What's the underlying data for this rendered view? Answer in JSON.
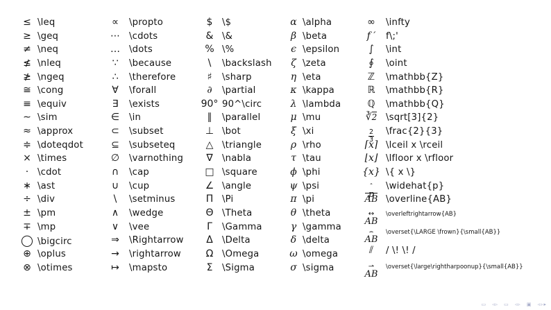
{
  "slide": {
    "background": "#ffffff",
    "text_color": "#141414",
    "nav_color": "#a9aecb"
  },
  "columns": [
    {
      "rows": [
        {
          "sym": "≤",
          "cmd": "\\leq"
        },
        {
          "sym": "≥",
          "cmd": "\\geq"
        },
        {
          "sym": "≠",
          "cmd": "\\neq"
        },
        {
          "sym": "≰",
          "cmd": "\\nleq"
        },
        {
          "sym": "≱",
          "cmd": "\\ngeq"
        },
        {
          "sym": "≅",
          "cmd": "\\cong"
        },
        {
          "sym": "≡",
          "cmd": "\\equiv"
        },
        {
          "sym": "∼",
          "cmd": "\\sim"
        },
        {
          "sym": "≈",
          "cmd": "\\approx"
        },
        {
          "sym": "≑",
          "cmd": "\\doteqdot"
        },
        {
          "sym": "×",
          "cmd": "\\times"
        },
        {
          "sym": "·",
          "cmd": "\\cdot"
        },
        {
          "sym": "∗",
          "cmd": "\\ast"
        },
        {
          "sym": "÷",
          "cmd": "\\div"
        },
        {
          "sym": "±",
          "cmd": "\\pm"
        },
        {
          "sym": "∓",
          "cmd": "\\mp"
        },
        {
          "sym": "◯",
          "cmd": "\\bigcirc",
          "big": true
        },
        {
          "sym": "⊕",
          "cmd": "\\oplus"
        },
        {
          "sym": "⊗",
          "cmd": "\\otimes"
        }
      ]
    },
    {
      "rows": [
        {
          "sym": "∝",
          "cmd": "\\propto"
        },
        {
          "sym": "⋯",
          "cmd": "\\cdots"
        },
        {
          "sym": "…",
          "cmd": "\\dots"
        },
        {
          "sym": "∵",
          "cmd": "\\because"
        },
        {
          "sym": "∴",
          "cmd": "\\therefore"
        },
        {
          "sym": "∀",
          "cmd": "\\forall"
        },
        {
          "sym": "∃",
          "cmd": "\\exists"
        },
        {
          "sym": "∈",
          "cmd": "\\in"
        },
        {
          "sym": "⊂",
          "cmd": "\\subset"
        },
        {
          "sym": "⊆",
          "cmd": "\\subseteq"
        },
        {
          "sym": "∅",
          "cmd": "\\varnothing"
        },
        {
          "sym": "∩",
          "cmd": "\\cap"
        },
        {
          "sym": "∪",
          "cmd": "\\cup"
        },
        {
          "sym": "\\",
          "cmd": "\\setminus"
        },
        {
          "sym": "∧",
          "cmd": "\\wedge"
        },
        {
          "sym": "∨",
          "cmd": "\\vee"
        },
        {
          "sym": "⇒",
          "cmd": "\\Rightarrow"
        },
        {
          "sym": "→",
          "cmd": "\\rightarrow"
        },
        {
          "sym": "↦",
          "cmd": "\\mapsto"
        }
      ]
    },
    {
      "rows": [
        {
          "sym": "$",
          "cmd": "\\$"
        },
        {
          "sym": "&",
          "cmd": "\\&"
        },
        {
          "sym": "%",
          "cmd": "\\%"
        },
        {
          "sym": "\\",
          "cmd": "\\backslash"
        },
        {
          "sym": "♯",
          "cmd": "\\sharp"
        },
        {
          "sym": "∂",
          "cmd": "\\partial",
          "it": true
        },
        {
          "sym": "90°",
          "cmd": "90^\\circ"
        },
        {
          "sym": "∥",
          "cmd": "\\parallel"
        },
        {
          "sym": "⊥",
          "cmd": "\\bot"
        },
        {
          "sym": "△",
          "cmd": "\\triangle"
        },
        {
          "sym": "∇",
          "cmd": "\\nabla"
        },
        {
          "sym": "□",
          "cmd": "\\square"
        },
        {
          "sym": "∠",
          "cmd": "\\angle"
        },
        {
          "sym": "Π",
          "cmd": "\\Pi"
        },
        {
          "sym": "Θ",
          "cmd": "\\Theta"
        },
        {
          "sym": "Γ",
          "cmd": "\\Gamma"
        },
        {
          "sym": "Δ",
          "cmd": "\\Delta"
        },
        {
          "sym": "Ω",
          "cmd": "\\Omega"
        },
        {
          "sym": "Σ",
          "cmd": "\\Sigma"
        }
      ]
    },
    {
      "rows": [
        {
          "sym": "α",
          "cmd": "\\alpha",
          "it": true
        },
        {
          "sym": "β",
          "cmd": "\\beta",
          "it": true
        },
        {
          "sym": "ϵ",
          "cmd": "\\epsilon",
          "it": true
        },
        {
          "sym": "ζ",
          "cmd": "\\zeta",
          "it": true
        },
        {
          "sym": "η",
          "cmd": "\\eta",
          "it": true
        },
        {
          "sym": "κ",
          "cmd": "\\kappa",
          "it": true
        },
        {
          "sym": "λ",
          "cmd": "\\lambda",
          "it": true
        },
        {
          "sym": "μ",
          "cmd": "\\mu",
          "it": true
        },
        {
          "sym": "ξ",
          "cmd": "\\xi",
          "it": true
        },
        {
          "sym": "ρ",
          "cmd": "\\rho",
          "it": true
        },
        {
          "sym": "τ",
          "cmd": "\\tau",
          "it": true
        },
        {
          "sym": "ϕ",
          "cmd": "\\phi",
          "it": true
        },
        {
          "sym": "ψ",
          "cmd": "\\psi",
          "it": true
        },
        {
          "sym": "π",
          "cmd": "\\pi",
          "it": true
        },
        {
          "sym": "θ",
          "cmd": "\\theta",
          "it": true
        },
        {
          "sym": "γ",
          "cmd": "\\gamma",
          "it": true
        },
        {
          "sym": "δ",
          "cmd": "\\delta",
          "it": true
        },
        {
          "sym": "ω",
          "cmd": "\\omega",
          "it": true
        },
        {
          "sym": "σ",
          "cmd": "\\sigma",
          "it": true
        }
      ]
    },
    {
      "rows": [
        {
          "sym": "∞",
          "cmd": "\\infty"
        },
        {
          "sym": "f ′",
          "cmd": "f\\;'",
          "it": true
        },
        {
          "sym": "∫",
          "cmd": "\\int"
        },
        {
          "sym": "∮",
          "cmd": "\\oint"
        },
        {
          "sym": "ℤ",
          "cmd": "\\mathbb{Z}"
        },
        {
          "sym": "ℝ",
          "cmd": "\\mathbb{R}"
        },
        {
          "sym": "ℚ",
          "cmd": "\\mathbb{Q}"
        },
        {
          "sym": {
            "t": "sqrt",
            "pre": "∛",
            "rad": "2"
          },
          "cmd": "\\sqrt[3]{2}"
        },
        {
          "sym": {
            "t": "frac",
            "num": "2",
            "den": "3"
          },
          "cmd": "\\frac{2}{3}"
        },
        {
          "sym": "⌈x⌉",
          "cmd": "\\lceil x \\rceil",
          "it": true
        },
        {
          "sym": "⌊x⌋",
          "cmd": "\\lfloor x \\rfloor",
          "it": true
        },
        {
          "sym": "{x}",
          "cmd": "\\{ x \\}",
          "it": true
        },
        {
          "sym": {
            "t": "ov",
            "top": "ˆ",
            "base": "p"
          },
          "cmd": "\\widehat{p}"
        },
        {
          "sym": {
            "t": "ol",
            "base": "AB"
          },
          "cmd": "\\overline{AB}"
        },
        {
          "sym": {
            "t": "ov",
            "top": "↔",
            "base": "AB"
          },
          "cmd": "\\overleftrightarrow{AB}",
          "small": true,
          "h": "t26"
        },
        {
          "sym": {
            "t": "ov",
            "top": "⌢",
            "base": "AB"
          },
          "cmd": "\\overset{\\LARGE \\frown}{\\small{AB}}",
          "small": true,
          "h": "t28"
        },
        {
          "sym": "⫽",
          "cmd": "/ \\! \\! /",
          "h": "t22"
        },
        {
          "sym": {
            "t": "ov",
            "top": "⇀",
            "base": "AB"
          },
          "cmd": "\\overset{\\large\\rightharpoonup}{\\small{AB}}",
          "small": true,
          "h": "t24"
        }
      ]
    }
  ],
  "nav": {
    "glyphs": [
      "▭",
      "◃▹",
      "▭",
      "◃▹",
      "▣",
      "◃▹▸"
    ]
  }
}
